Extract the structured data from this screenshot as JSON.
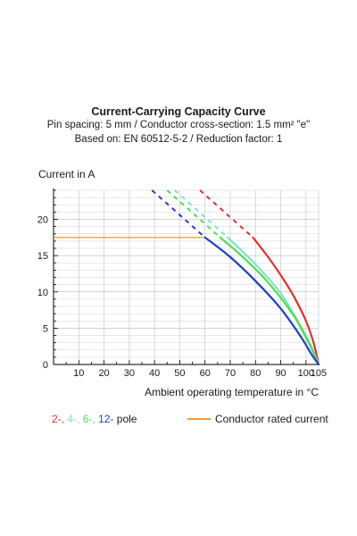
{
  "title": "Current-Carrying Capacity Curve",
  "subtitle_line1": "Pin spacing: 5 mm / Conductor cross-section: 1.5 mm² \"e\"",
  "subtitle_line2": "Based on: EN 60512-5-2 / Reduction factor: 1",
  "colors": {
    "pole2": "#e03030",
    "pole4": "#80e0d0",
    "pole6": "#50dd50",
    "pole12": "#2040c0",
    "rated": "#f0a030",
    "grid": "#c0c0c0",
    "axis": "#000000"
  },
  "legend": {
    "pole2_text": "2-,",
    "pole4_text": "4-,",
    "pole6_text": "6-,",
    "pole12_text": "12-",
    "pole_suffix": "pole",
    "rated_text": "Conductor rated current"
  },
  "chart_data": {
    "type": "line",
    "xlabel": "Ambient operating temperature in °C",
    "ylabel": "Current in A",
    "xlim": [
      0,
      105
    ],
    "ylim": [
      0,
      24
    ],
    "xticks": [
      10,
      20,
      30,
      40,
      50,
      60,
      70,
      80,
      90,
      100,
      105
    ],
    "yticks": [
      0,
      5,
      10,
      15,
      20
    ],
    "grid": true,
    "legend_position": "bottom",
    "rated_current": 17.5,
    "series": [
      {
        "name": "2-",
        "color_key": "pole2",
        "dashed": [
          [
            58,
            24
          ],
          [
            79,
            17.5
          ]
        ],
        "solid": [
          [
            79,
            17.5
          ],
          [
            85,
            14.8
          ],
          [
            90,
            12.3
          ],
          [
            95,
            9.5
          ],
          [
            100,
            6.0
          ],
          [
            103,
            3.0
          ],
          [
            105,
            0
          ]
        ]
      },
      {
        "name": "4-",
        "color_key": "pole4",
        "dashed": [
          [
            48,
            24
          ],
          [
            69,
            17.5
          ]
        ],
        "solid": [
          [
            69,
            17.5
          ],
          [
            80,
            13.8
          ],
          [
            90,
            9.8
          ],
          [
            98,
            5.2
          ],
          [
            102,
            2.6
          ],
          [
            105,
            0
          ]
        ]
      },
      {
        "name": "6-",
        "color_key": "pole6",
        "dashed": [
          [
            45,
            24
          ],
          [
            66,
            17.5
          ]
        ],
        "solid": [
          [
            66,
            17.5
          ],
          [
            75,
            14.8
          ],
          [
            85,
            11.3
          ],
          [
            95,
            6.8
          ],
          [
            101,
            3.0
          ],
          [
            104,
            0.8
          ],
          [
            105,
            0
          ]
        ]
      },
      {
        "name": "12-",
        "color_key": "pole12",
        "dashed": [
          [
            39,
            24
          ],
          [
            60,
            17.5
          ]
        ],
        "solid": [
          [
            60,
            17.5
          ],
          [
            70,
            14.8
          ],
          [
            80,
            11.5
          ],
          [
            90,
            7.7
          ],
          [
            98,
            3.8
          ],
          [
            102,
            1.5
          ],
          [
            105,
            0
          ]
        ]
      }
    ]
  }
}
